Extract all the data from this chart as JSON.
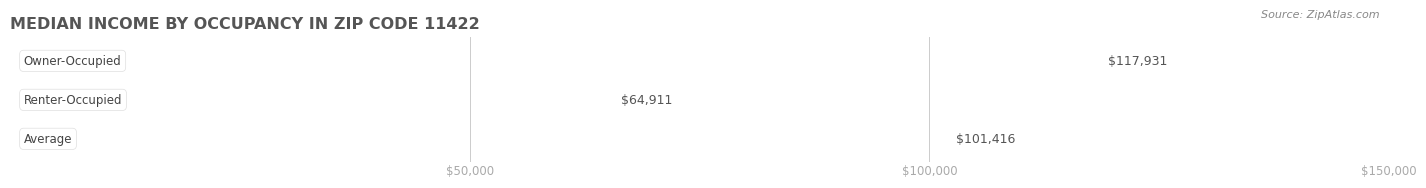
{
  "title": "MEDIAN INCOME BY OCCUPANCY IN ZIP CODE 11422",
  "source": "Source: ZipAtlas.com",
  "categories": [
    "Owner-Occupied",
    "Renter-Occupied",
    "Average"
  ],
  "values": [
    117931,
    64911,
    101416
  ],
  "bar_colors": [
    "#3dbcbe",
    "#c8a8d2",
    "#f5bb72"
  ],
  "bar_bg_color": "#e8e8e8",
  "label_format": [
    "$117,931",
    "$64,911",
    "$101,416"
  ],
  "xlim": [
    0,
    150000
  ],
  "xticks": [
    0,
    50000,
    100000,
    150000
  ],
  "xtick_labels": [
    "",
    "$50,000",
    "$100,000",
    "$150,000"
  ],
  "bg_color": "#ffffff",
  "bar_height": 0.62,
  "title_fontsize": 11.5,
  "label_fontsize": 9,
  "tick_fontsize": 8.5,
  "source_fontsize": 8,
  "title_color": "#555555",
  "label_color": "#555555",
  "tick_color": "#aaaaaa",
  "source_color": "#888888",
  "category_fontsize": 8.5
}
